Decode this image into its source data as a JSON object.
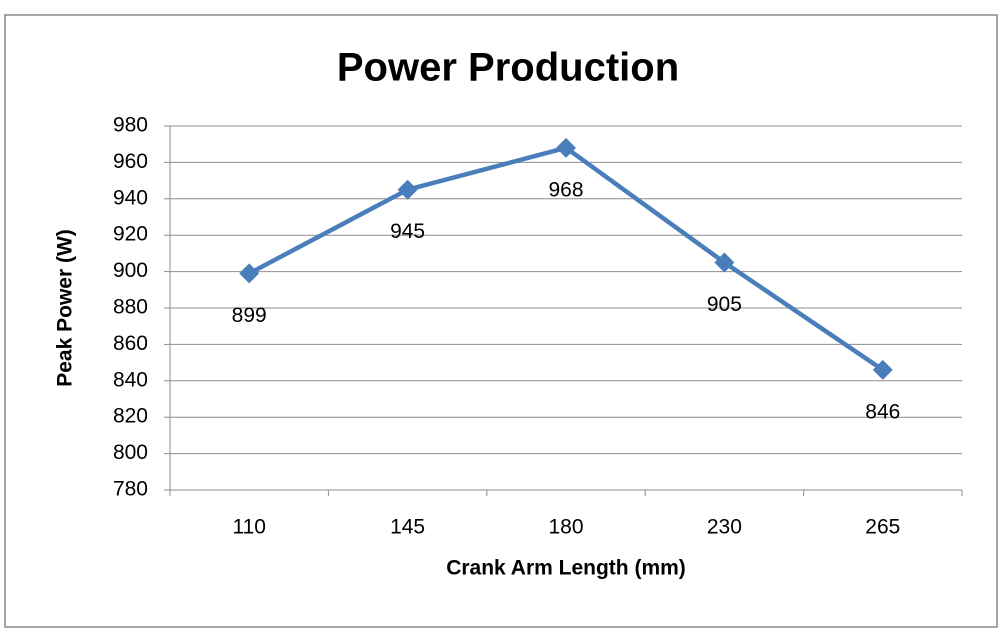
{
  "chart_data": {
    "type": "line",
    "title": "Power Production",
    "x_label": "Crank Arm Length (mm)",
    "y_label": "Peak Power (W)",
    "categories": [
      "110",
      "145",
      "180",
      "230",
      "265"
    ],
    "series": [
      {
        "name": "Peak Power",
        "color": "#4a7ebb",
        "values": [
          899,
          945,
          968,
          905,
          846
        ]
      }
    ],
    "ylim": [
      780,
      980
    ],
    "yticks": [
      780,
      800,
      820,
      840,
      860,
      880,
      900,
      920,
      940,
      960,
      980
    ],
    "grid": true,
    "legend": false
  }
}
